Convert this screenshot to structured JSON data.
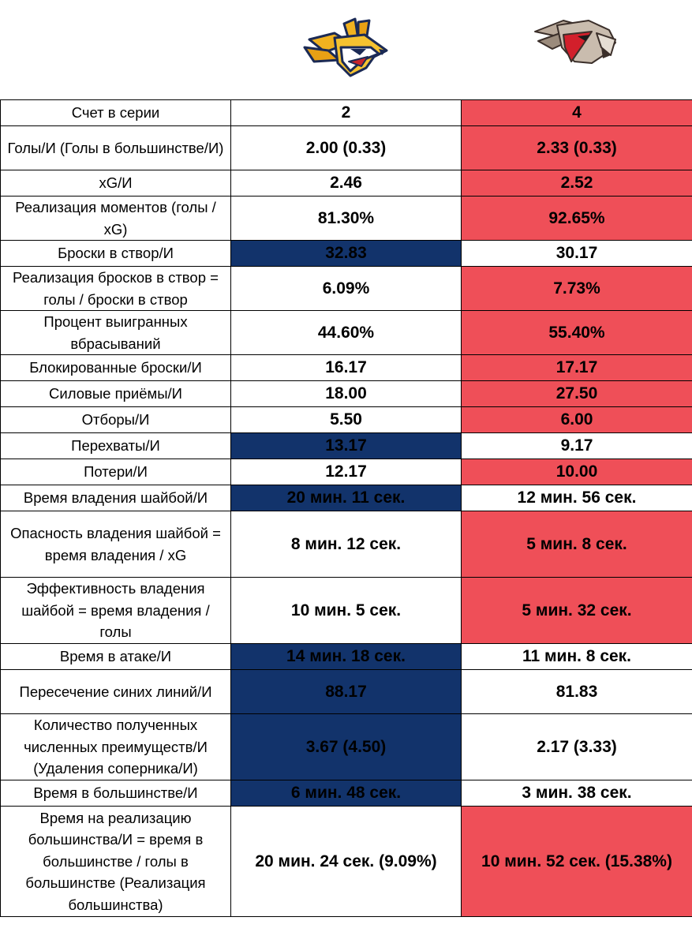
{
  "teams": {
    "left": {
      "logo_icon": "metallurg-steel-fox-logo-icon",
      "color": "#12336b"
    },
    "right": {
      "logo_icon": "avangard-hawk-logo-icon",
      "color": "#ef4f58"
    }
  },
  "colors": {
    "highlight_left": "#12336b",
    "highlight_right": "#ef4f58",
    "border": "#000000"
  },
  "rows": [
    {
      "label": "Счет в серии",
      "left": "2",
      "right": "4",
      "hl": "right"
    },
    {
      "label": "Голы/И (Голы в большинстве/И)",
      "left": "2.00 (0.33)",
      "right": "2.33 (0.33)",
      "hl": "right"
    },
    {
      "label": "xG/И",
      "left": "2.46",
      "right": "2.52",
      "hl": "right"
    },
    {
      "label": "Реализация моментов (голы / xG)",
      "left": "81.30%",
      "right": "92.65%",
      "hl": "right"
    },
    {
      "label": "Броски в створ/И",
      "left": "32.83",
      "right": "30.17",
      "hl": "left"
    },
    {
      "label": "Реализация бросков в створ = голы / броски в створ",
      "left": "6.09%",
      "right": "7.73%",
      "hl": "right"
    },
    {
      "label": "Процент выигранных вбрасываний",
      "left": "44.60%",
      "right": "55.40%",
      "hl": "right"
    },
    {
      "label": "Блокированные броски/И",
      "left": "16.17",
      "right": "17.17",
      "hl": "right"
    },
    {
      "label": "Силовые приёмы/И",
      "left": "18.00",
      "right": "27.50",
      "hl": "right"
    },
    {
      "label": "Отборы/И",
      "left": "5.50",
      "right": "6.00",
      "hl": "right"
    },
    {
      "label": "Перехваты/И",
      "left": "13.17",
      "right": "9.17",
      "hl": "left"
    },
    {
      "label": "Потери/И",
      "left": "12.17",
      "right": "10.00",
      "hl": "right"
    },
    {
      "label": "Время владения шайбой/И",
      "left": "20 мин. 11 сек.",
      "right": "12 мин. 56 сек.",
      "hl": "left"
    },
    {
      "label": "Опасность владения шайбой = время владения / xG",
      "left": "8 мин. 12 сек.",
      "right": "5 мин. 8 сек.",
      "hl": "right"
    },
    {
      "label": "Эффективность владения шайбой = время владения / голы",
      "left": "10 мин. 5 сек.",
      "right": "5 мин. 32 сек.",
      "hl": "right"
    },
    {
      "label": "Время в атаке/И",
      "left": "14 мин. 18 сек.",
      "right": "11 мин. 8 сек.",
      "hl": "left"
    },
    {
      "label": "Пересечение синих линий/И",
      "left": "88.17",
      "right": "81.83",
      "hl": "left"
    },
    {
      "label": "Количество полученных численных преимуществ/И (Удаления соперника/И)",
      "left": "3.67 (4.50)",
      "right": "2.17 (3.33)",
      "hl": "left"
    },
    {
      "label": "Время в большинстве/И",
      "left": "6 мин. 48 сек.",
      "right": "3 мин. 38 сек.",
      "hl": "left"
    },
    {
      "label": "Время на реализацию большинства/И = время в большинстве / голы в большинстве (Реализация большинства)",
      "left": "20 мин. 24 сек. (9.09%)",
      "right": "10 мин. 52 сек. (15.38%)",
      "hl": "right"
    }
  ]
}
